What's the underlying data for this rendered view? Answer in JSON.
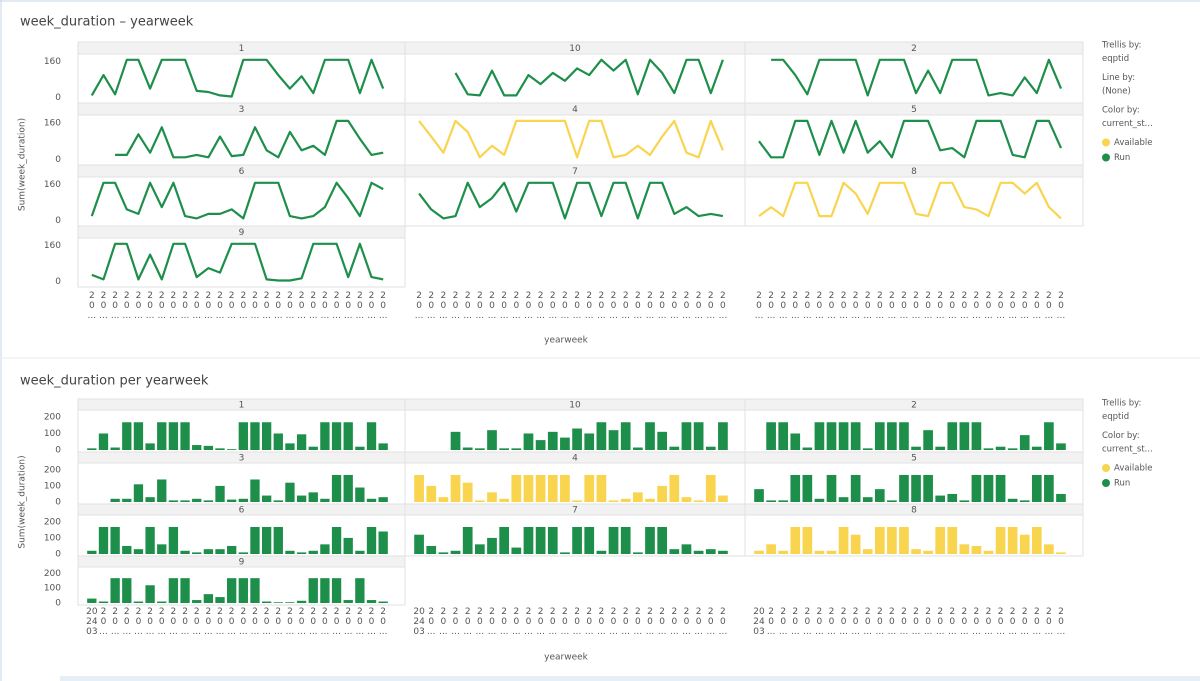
{
  "chart_data": [
    {
      "type": "line",
      "title": "week_duration – yearweek",
      "y_label": "Sum(week_duration)",
      "x_label": "yearweek",
      "trellis_by_label": "Trellis by:",
      "trellis_by": "eqptid",
      "line_by_label": "Line by:",
      "line_by": "(None)",
      "color_by_label": "Color by:",
      "color_by": "current_st...",
      "legend": [
        {
          "name": "Available",
          "color": "#f9d44f"
        },
        {
          "name": "Run",
          "color": "#1e8f4b"
        }
      ],
      "categories": [
        "20...",
        "20...",
        "20...",
        "20...",
        "20...",
        "20...",
        "20...",
        "20...",
        "20...",
        "20...",
        "20...",
        "20...",
        "20...",
        "20...",
        "20...",
        "20...",
        "20...",
        "20...",
        "20...",
        "20...",
        "20...",
        "20...",
        "20...",
        "20...",
        "20...",
        "20..."
      ],
      "ylim": [
        -15,
        185
      ],
      "yticks": [
        0,
        160
      ],
      "panels": [
        {
          "name": "1",
          "color": "#1e8f4b",
          "values": [
            10,
            100,
            15,
            168,
            168,
            40,
            168,
            168,
            168,
            30,
            25,
            10,
            5,
            168,
            168,
            168,
            100,
            40,
            95,
            20,
            168,
            168,
            168,
            20,
            168,
            40
          ]
        },
        {
          "name": "10",
          "color": "#1e8f4b",
          "values": [
            null,
            null,
            null,
            110,
            15,
            10,
            120,
            10,
            10,
            100,
            60,
            110,
            75,
            130,
            100,
            168,
            120,
            168,
            15,
            168,
            110,
            20,
            168,
            168,
            20,
            168
          ]
        },
        {
          "name": "2",
          "color": "#1e8f4b",
          "values": [
            null,
            168,
            168,
            100,
            15,
            168,
            168,
            168,
            168,
            10,
            168,
            168,
            168,
            20,
            120,
            20,
            168,
            168,
            168,
            10,
            20,
            10,
            90,
            20,
            168,
            40
          ]
        },
        {
          "name": "3",
          "color": "#1e8f4b",
          "values": [
            null,
            null,
            20,
            20,
            110,
            30,
            140,
            10,
            10,
            20,
            10,
            100,
            15,
            20,
            140,
            40,
            10,
            120,
            40,
            60,
            20,
            168,
            168,
            90,
            20,
            30
          ]
        },
        {
          "name": "4",
          "color": "#f9d44f",
          "values": [
            168,
            100,
            30,
            168,
            120,
            10,
            60,
            20,
            168,
            168,
            168,
            168,
            168,
            10,
            168,
            168,
            10,
            20,
            60,
            20,
            100,
            168,
            30,
            10,
            168,
            40
          ]
        },
        {
          "name": "5",
          "color": "#1e8f4b",
          "values": [
            80,
            10,
            10,
            168,
            168,
            20,
            168,
            30,
            168,
            30,
            80,
            10,
            168,
            168,
            168,
            40,
            50,
            10,
            168,
            168,
            168,
            20,
            10,
            168,
            168,
            50
          ]
        },
        {
          "name": "6",
          "color": "#1e8f4b",
          "values": [
            20,
            168,
            168,
            50,
            30,
            168,
            60,
            168,
            20,
            10,
            30,
            30,
            50,
            10,
            168,
            168,
            168,
            20,
            10,
            20,
            60,
            168,
            100,
            20,
            168,
            140
          ]
        },
        {
          "name": "7",
          "color": "#1e8f4b",
          "values": [
            120,
            50,
            10,
            20,
            168,
            60,
            100,
            168,
            40,
            168,
            168,
            168,
            10,
            168,
            168,
            20,
            168,
            168,
            10,
            168,
            168,
            30,
            60,
            20,
            30,
            20
          ]
        },
        {
          "name": "8",
          "color": "#f9d44f",
          "values": [
            20,
            60,
            20,
            168,
            168,
            20,
            20,
            168,
            120,
            30,
            168,
            168,
            168,
            30,
            20,
            168,
            168,
            60,
            50,
            20,
            168,
            168,
            120,
            168,
            60,
            10
          ]
        },
        {
          "name": "9",
          "color": "#1e8f4b",
          "values": [
            30,
            10,
            168,
            168,
            10,
            120,
            10,
            168,
            168,
            20,
            60,
            40,
            168,
            168,
            168,
            10,
            5,
            5,
            15,
            168,
            168,
            168,
            20,
            168,
            20,
            10
          ]
        }
      ]
    },
    {
      "type": "bar",
      "title": "week_duration per yearweek",
      "y_label": "Sum(week_duration)",
      "x_label": "yearweek",
      "trellis_by_label": "Trellis by:",
      "trellis_by": "eqptid",
      "color_by_label": "Color by:",
      "color_by": "current_st...",
      "legend": [
        {
          "name": "Available",
          "color": "#f9d44f"
        },
        {
          "name": "Run",
          "color": "#1e8f4b"
        }
      ],
      "categories": [
        "202403",
        "20...",
        "20...",
        "20...",
        "20...",
        "20...",
        "20...",
        "20...",
        "20...",
        "20...",
        "20...",
        "20...",
        "20...",
        "20...",
        "20...",
        "20...",
        "20...",
        "20...",
        "20...",
        "20...",
        "20...",
        "20...",
        "20...",
        "20...",
        "20...",
        "20..."
      ],
      "ylim": [
        0,
        230
      ],
      "yticks": [
        0,
        100,
        200
      ],
      "panels": [
        {
          "name": "1",
          "color": "#1e8f4b",
          "values": [
            10,
            100,
            15,
            168,
            168,
            40,
            168,
            168,
            168,
            30,
            25,
            10,
            5,
            168,
            168,
            168,
            100,
            40,
            95,
            20,
            168,
            168,
            168,
            20,
            168,
            40
          ]
        },
        {
          "name": "10",
          "color": "#1e8f4b",
          "values": [
            null,
            null,
            null,
            110,
            15,
            10,
            120,
            10,
            10,
            100,
            60,
            110,
            75,
            130,
            100,
            168,
            120,
            168,
            15,
            168,
            110,
            20,
            168,
            168,
            20,
            168
          ]
        },
        {
          "name": "2",
          "color": "#1e8f4b",
          "values": [
            null,
            168,
            168,
            100,
            15,
            168,
            168,
            168,
            168,
            10,
            168,
            168,
            168,
            20,
            120,
            20,
            168,
            168,
            168,
            10,
            20,
            10,
            90,
            20,
            168,
            40
          ]
        },
        {
          "name": "3",
          "color": "#1e8f4b",
          "values": [
            null,
            null,
            20,
            20,
            110,
            30,
            140,
            10,
            10,
            20,
            10,
            100,
            15,
            20,
            140,
            40,
            10,
            120,
            40,
            60,
            20,
            168,
            168,
            90,
            20,
            30
          ]
        },
        {
          "name": "4",
          "color": "#f9d44f",
          "values": [
            168,
            100,
            30,
            168,
            120,
            10,
            60,
            20,
            168,
            168,
            168,
            168,
            168,
            10,
            168,
            168,
            10,
            20,
            60,
            20,
            100,
            168,
            30,
            10,
            168,
            40
          ]
        },
        {
          "name": "5",
          "color": "#1e8f4b",
          "values": [
            80,
            10,
            10,
            168,
            168,
            20,
            168,
            30,
            168,
            30,
            80,
            10,
            168,
            168,
            168,
            40,
            50,
            10,
            168,
            168,
            168,
            20,
            10,
            168,
            168,
            50
          ]
        },
        {
          "name": "6",
          "color": "#1e8f4b",
          "values": [
            20,
            168,
            168,
            50,
            30,
            168,
            60,
            168,
            20,
            10,
            30,
            30,
            50,
            10,
            168,
            168,
            168,
            20,
            10,
            20,
            60,
            168,
            100,
            20,
            168,
            140
          ]
        },
        {
          "name": "7",
          "color": "#1e8f4b",
          "values": [
            120,
            50,
            10,
            20,
            168,
            60,
            100,
            168,
            40,
            168,
            168,
            168,
            10,
            168,
            168,
            20,
            168,
            168,
            10,
            168,
            168,
            30,
            60,
            20,
            30,
            20
          ]
        },
        {
          "name": "8",
          "color": "#f9d44f",
          "values": [
            20,
            60,
            20,
            168,
            168,
            20,
            20,
            168,
            120,
            30,
            168,
            168,
            168,
            30,
            20,
            168,
            168,
            60,
            50,
            20,
            168,
            168,
            120,
            168,
            60,
            10
          ]
        },
        {
          "name": "9",
          "color": "#1e8f4b",
          "values": [
            30,
            10,
            168,
            168,
            10,
            120,
            10,
            168,
            168,
            20,
            60,
            40,
            168,
            168,
            168,
            10,
            5,
            5,
            15,
            168,
            168,
            168,
            20,
            168,
            20,
            10
          ]
        }
      ]
    }
  ]
}
